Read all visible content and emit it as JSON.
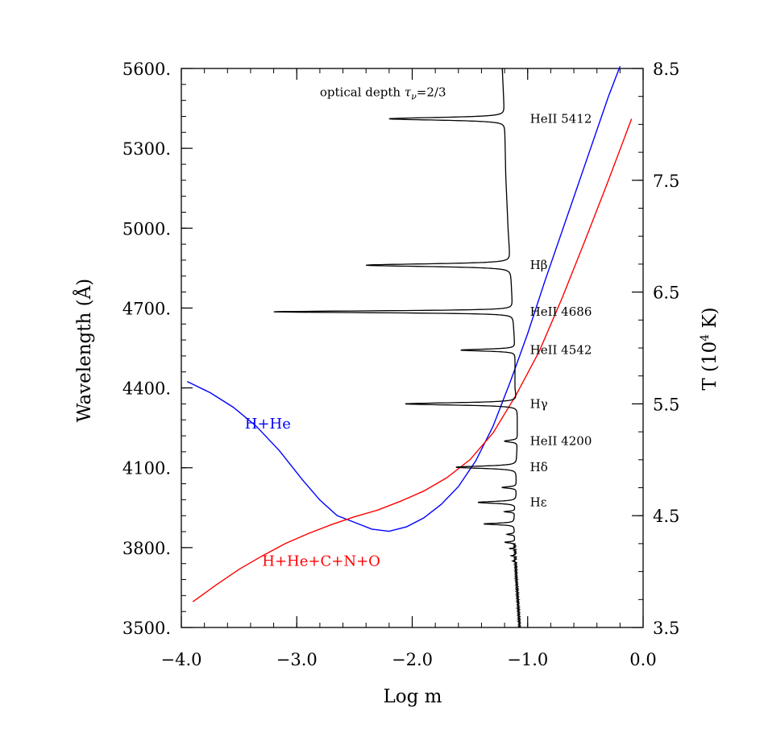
{
  "chart_data": {
    "type": "line",
    "xlabel": "Log m",
    "ylabel_left": "Wavelength (Å)",
    "ylabel_right_parts": [
      "T (10",
      "4",
      " K)"
    ],
    "xlim": [
      -4.0,
      0.0
    ],
    "ylim_left": [
      3500,
      5600
    ],
    "ylim_right": [
      3.5,
      8.5
    ],
    "x_ticks": [
      "−4.0",
      "−3.0",
      "−2.0",
      "−1.0",
      "0.0"
    ],
    "x_tick_values": [
      -4.0,
      -3.0,
      -2.0,
      -1.0,
      0.0
    ],
    "y_left_ticks": [
      "5600.",
      "5300.",
      "5000.",
      "4700.",
      "4400.",
      "4100.",
      "3800.",
      "3500."
    ],
    "y_left_tick_values": [
      5600,
      5300,
      5000,
      4700,
      4400,
      4100,
      3800,
      3500
    ],
    "y_right_ticks": [
      "8.5",
      "7.5",
      "6.5",
      "5.5",
      "4.5",
      "3.5"
    ],
    "y_right_tick_values": [
      8.5,
      7.5,
      6.5,
      5.5,
      4.5,
      3.5
    ],
    "grid": false,
    "annotation": {
      "pre": "optical depth ",
      "tau": "τ",
      "nu": "ν",
      "post": "=2/3",
      "x": -2.8,
      "y": 5510
    },
    "line_labels": [
      {
        "text": "HeII 5412",
        "x": -0.98,
        "y": 5411
      },
      {
        "text": "Hβ",
        "x": -0.98,
        "y": 4861
      },
      {
        "text": "HeII 4686",
        "x": -0.98,
        "y": 4686
      },
      {
        "text": "HeII 4542",
        "x": -0.98,
        "y": 4542
      },
      {
        "text": "Hγ",
        "x": -0.98,
        "y": 4340
      },
      {
        "text": "HeII 4200",
        "x": -0.98,
        "y": 4200
      },
      {
        "text": "Hδ",
        "x": -0.98,
        "y": 4102
      },
      {
        "text": "Hε",
        "x": -0.98,
        "y": 3970
      }
    ],
    "series": [
      {
        "name": "H+He",
        "color": "#0000ff",
        "axis": "right",
        "label_pos": {
          "x": -3.45,
          "y": 5.28
        },
        "x": [
          -3.95,
          -3.75,
          -3.55,
          -3.35,
          -3.15,
          -2.95,
          -2.8,
          -2.65,
          -2.5,
          -2.35,
          -2.2,
          -2.05,
          -1.9,
          -1.75,
          -1.6,
          -1.45,
          -1.3,
          -1.15,
          -1.0,
          -0.85,
          -0.7,
          -0.55,
          -0.4,
          -0.3,
          -0.2
        ],
        "y": [
          5.7,
          5.6,
          5.47,
          5.3,
          5.08,
          4.82,
          4.64,
          4.5,
          4.44,
          4.38,
          4.36,
          4.4,
          4.48,
          4.6,
          4.76,
          4.99,
          5.3,
          5.7,
          6.13,
          6.6,
          7.05,
          7.5,
          7.95,
          8.25,
          8.52
        ]
      },
      {
        "name": "H+He+C+N+O",
        "color": "#ff0000",
        "axis": "right",
        "label_pos": {
          "x": -3.3,
          "y": 4.05
        },
        "x": [
          -3.9,
          -3.7,
          -3.5,
          -3.3,
          -3.1,
          -2.9,
          -2.7,
          -2.5,
          -2.3,
          -2.1,
          -1.9,
          -1.7,
          -1.5,
          -1.3,
          -1.1,
          -0.9,
          -0.7,
          -0.5,
          -0.3,
          -0.1
        ],
        "y": [
          3.73,
          3.88,
          4.02,
          4.14,
          4.25,
          4.34,
          4.42,
          4.49,
          4.55,
          4.63,
          4.72,
          4.84,
          5.0,
          5.24,
          5.58,
          5.97,
          6.45,
          6.97,
          7.5,
          8.05
        ]
      },
      {
        "name": "optical depth τν=2/3",
        "color": "#000000",
        "axis": "left",
        "baseline": [
          [
            3500,
            -1.07
          ],
          [
            3700,
            -1.1
          ],
          [
            3900,
            -1.12
          ],
          [
            4000,
            -1.1
          ],
          [
            4100,
            -1.1
          ],
          [
            4200,
            -1.09
          ],
          [
            4340,
            -1.09
          ],
          [
            4400,
            -1.11
          ],
          [
            4542,
            -1.11
          ],
          [
            4686,
            -1.13
          ],
          [
            4861,
            -1.15
          ],
          [
            5000,
            -1.17
          ],
          [
            5200,
            -1.19
          ],
          [
            5411,
            -1.2
          ],
          [
            5600,
            -1.22
          ]
        ],
        "lines": [
          {
            "wl": 5411,
            "min": -2.2,
            "w": 7
          },
          {
            "wl": 4861,
            "min": -2.4,
            "w": 7
          },
          {
            "wl": 4686,
            "min": -3.2,
            "w": 5
          },
          {
            "wl": 4542,
            "min": -1.58,
            "w": 5
          },
          {
            "wl": 4340,
            "min": -2.06,
            "w": 6
          },
          {
            "wl": 4200,
            "min": -1.2,
            "w": 5
          },
          {
            "wl": 4102,
            "min": -1.62,
            "w": 6
          },
          {
            "wl": 4026,
            "min": -1.22,
            "w": 4
          },
          {
            "wl": 3970,
            "min": -1.43,
            "w": 5
          },
          {
            "wl": 3935,
            "min": -1.2,
            "w": 3
          },
          {
            "wl": 3889,
            "min": -1.38,
            "w": 4
          },
          {
            "wl": 3850,
            "min": -1.18,
            "w": 3
          },
          {
            "wl": 3820,
            "min": -1.2,
            "w": 3
          },
          {
            "wl": 3797,
            "min": -1.15,
            "w": 2
          },
          {
            "wl": 3770,
            "min": -1.14,
            "w": 2
          },
          {
            "wl": 3750,
            "min": -1.13,
            "w": 2
          }
        ]
      }
    ]
  }
}
